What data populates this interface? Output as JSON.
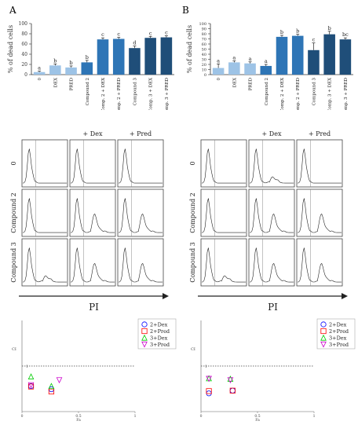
{
  "panels": {
    "a_label": "A",
    "b_label": "B"
  },
  "chart_data": [
    {
      "type": "bar",
      "panel": "A",
      "ylabel": "% of dead cells",
      "ylim": [
        0,
        100
      ],
      "yticks": [
        0,
        20,
        40,
        60,
        80,
        100
      ],
      "categories": [
        "0",
        "DEX",
        "PRED",
        "Compound 2",
        "Comp. 2 + DEX",
        "Comp. 2 + PRED",
        "Compound 3",
        "Comp. 3 + DEX",
        "Comp. 3 + PRED"
      ],
      "values": [
        5,
        18,
        14,
        24,
        69,
        70,
        52,
        72,
        73
      ],
      "errors": [
        2,
        3,
        3,
        4,
        3,
        3,
        4,
        3,
        3
      ],
      "letters": [
        "a",
        "b",
        "b",
        "b",
        "c",
        "c",
        "d",
        "c",
        "c"
      ],
      "colors": [
        "#9dc3e6",
        "#9dc3e6",
        "#9dc3e6",
        "#2e75b6",
        "#2e75b6",
        "#2e75b6",
        "#1f4e79",
        "#1f4e79",
        "#1f4e79"
      ]
    },
    {
      "type": "bar",
      "panel": "B",
      "ylabel": "% of dead cells",
      "ylim": [
        0,
        100
      ],
      "yticks": [
        0,
        10,
        20,
        30,
        40,
        50,
        60,
        70,
        80,
        90,
        100
      ],
      "categories": [
        "0",
        "DEX",
        "PRED",
        "Compound 2",
        "Comp. 2 + DEX",
        "Comp. 2 + PRED",
        "Compound 3",
        "Comp. 3 + DEX",
        "Comp. 3 + PRED"
      ],
      "values": [
        13,
        24,
        22,
        17,
        74,
        76,
        48,
        79,
        69
      ],
      "errors": [
        8,
        3,
        3,
        3,
        3,
        3,
        14,
        6,
        3
      ],
      "letters": [
        "a",
        "a",
        "a",
        "a",
        "b",
        "b",
        "c",
        "b",
        "bc"
      ],
      "colors": [
        "#9dc3e6",
        "#9dc3e6",
        "#9dc3e6",
        "#2e75b6",
        "#2e75b6",
        "#2e75b6",
        "#1f4e79",
        "#1f4e79",
        "#1f4e79"
      ]
    },
    {
      "type": "scatter",
      "panel": "A-CI",
      "xlabel": "Fa",
      "ylabel": "CI",
      "xlim": [
        0,
        1
      ],
      "ylim": [
        0,
        2
      ],
      "xticks": [
        "0",
        "0.5",
        "1"
      ],
      "reference_line": 1,
      "reference_label": "1",
      "series": [
        {
          "name": "2+Dex",
          "marker": "circle",
          "color": "#0000ff",
          "points": [
            [
              0.08,
              0.56
            ],
            [
              0.26,
              0.49
            ]
          ]
        },
        {
          "name": "2+Pred",
          "marker": "square",
          "color": "#ff0000",
          "points": [
            [
              0.08,
              0.55
            ],
            [
              0.26,
              0.44
            ]
          ]
        },
        {
          "name": "3+Dex",
          "marker": "triangle",
          "color": "#00cc00",
          "points": [
            [
              0.08,
              0.77
            ],
            [
              0.26,
              0.56
            ]
          ]
        },
        {
          "name": "3+Pred",
          "marker": "triangle-down",
          "color": "#cc00cc",
          "points": [
            [
              0.08,
              0.58
            ],
            [
              0.33,
              0.69
            ]
          ]
        }
      ]
    },
    {
      "type": "scatter",
      "panel": "B-CI",
      "xlabel": "Fa",
      "ylabel": "CI",
      "xlim": [
        0,
        1
      ],
      "ylim": [
        0,
        2
      ],
      "xticks": [
        "0",
        "0.5",
        "1"
      ],
      "reference_line": 1,
      "reference_label": "1",
      "series": [
        {
          "name": "2+Dex",
          "marker": "circle",
          "color": "#0000ff",
          "points": [
            [
              0.07,
              0.4
            ],
            [
              0.28,
              0.46
            ]
          ]
        },
        {
          "name": "2+Pred",
          "marker": "square",
          "color": "#ff0000",
          "points": [
            [
              0.07,
              0.45
            ],
            [
              0.28,
              0.46
            ]
          ]
        },
        {
          "name": "3+Dex",
          "marker": "triangle",
          "color": "#00cc00",
          "points": [
            [
              0.07,
              0.73
            ],
            [
              0.26,
              0.72
            ]
          ]
        },
        {
          "name": "3+Pred",
          "marker": "triangle-down",
          "color": "#cc00cc",
          "points": [
            [
              0.07,
              0.72
            ],
            [
              0.26,
              0.69
            ]
          ]
        }
      ]
    }
  ],
  "flow": {
    "col_labels": [
      "+ Dex",
      "+ Pred"
    ],
    "row_labels": [
      "0",
      "Compound 2",
      "Compound 3"
    ],
    "axis_label": "PI",
    "histograms": {
      "A": [
        [
          1,
          0
        ],
        [
          1,
          0
        ],
        [
          1,
          0
        ],
        [
          1,
          0
        ],
        [
          1,
          2
        ],
        [
          1,
          2
        ],
        [
          1,
          1
        ],
        [
          1,
          2
        ],
        [
          1,
          2
        ]
      ],
      "B": [
        [
          1,
          0
        ],
        [
          1,
          1
        ],
        [
          1,
          0
        ],
        [
          1,
          0
        ],
        [
          1,
          2
        ],
        [
          1,
          2
        ],
        [
          1,
          1
        ],
        [
          1,
          2
        ],
        [
          1,
          2
        ]
      ]
    }
  }
}
